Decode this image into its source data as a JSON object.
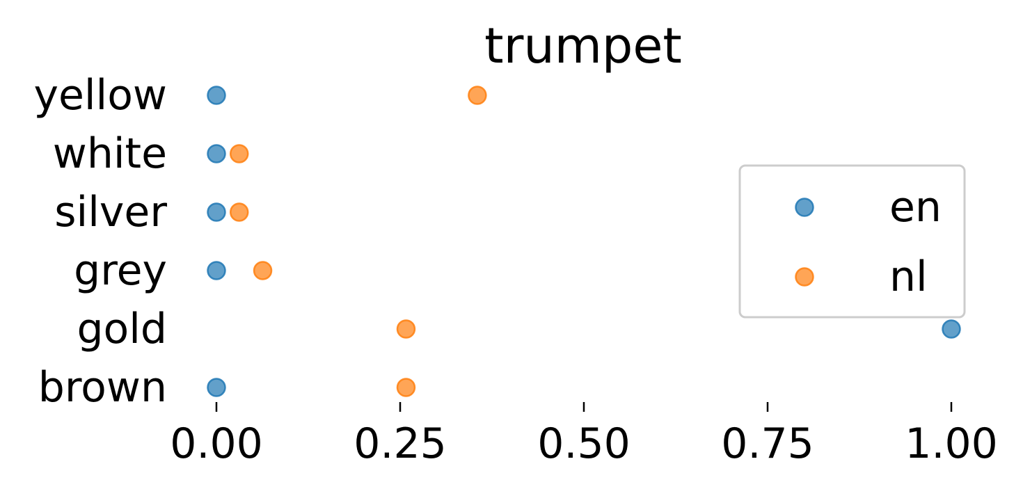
{
  "chart_data": {
    "type": "scatter",
    "title": "trumpet",
    "xlabel": "",
    "ylabel": "",
    "categories": [
      "yellow",
      "white",
      "silver",
      "grey",
      "gold",
      "brown"
    ],
    "xlim": [
      0.0,
      1.0
    ],
    "xticks": [
      0.0,
      0.25,
      0.5,
      0.75,
      1.0
    ],
    "xtick_labels": [
      "0.00",
      "0.25",
      "0.50",
      "0.75",
      "1.00"
    ],
    "grid": false,
    "legend_placement": "center-right",
    "series": [
      {
        "name": "en",
        "color": "#1f77b4",
        "values": [
          0.0,
          0.0,
          0.0,
          0.0,
          1.0,
          0.0
        ]
      },
      {
        "name": "nl",
        "color": "#ff7f0e",
        "values": [
          0.355,
          0.031,
          0.031,
          0.063,
          0.258,
          0.258
        ]
      }
    ]
  }
}
